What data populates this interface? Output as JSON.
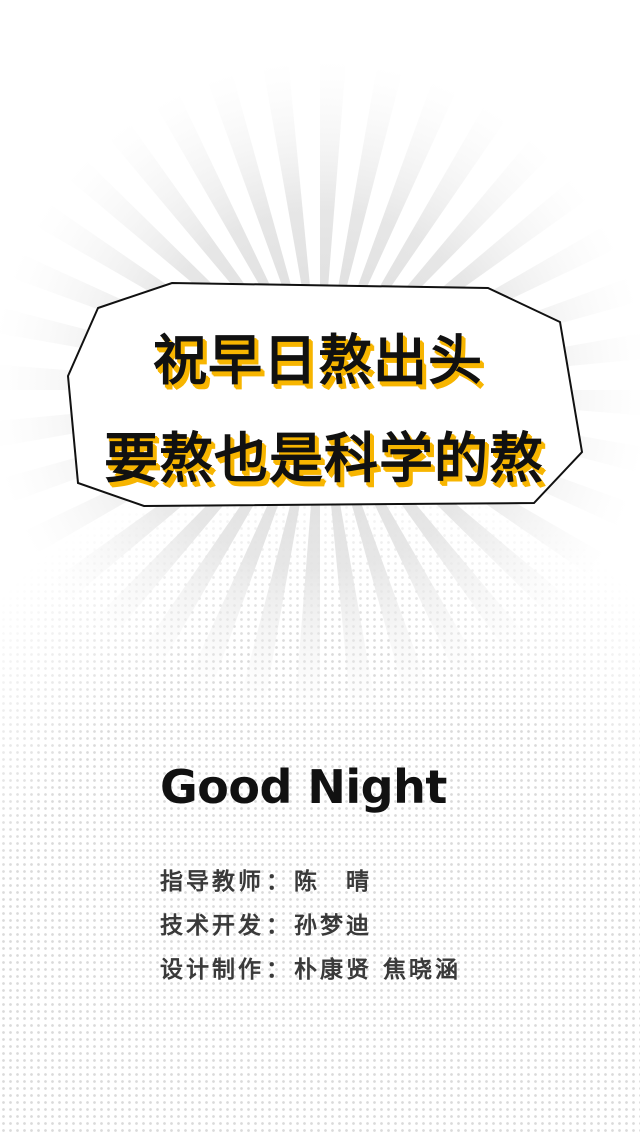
{
  "headline": {
    "line1": "祝早日熬出头",
    "line2": "要熬也是科学的熬"
  },
  "sign_off": "Good Night",
  "credits": [
    {
      "role": "指导教师",
      "separator": "：",
      "names": "陈　晴"
    },
    {
      "role": "技术开发",
      "separator": "：",
      "names": "孙梦迪"
    },
    {
      "role": "设计制作",
      "separator": "：",
      "names": "朴康贤  焦晓涵"
    }
  ],
  "colors": {
    "background": "#ffffff",
    "text": "#111111",
    "accent_shadow": "#f7b500",
    "credit_text": "#3a3a3a",
    "burst_gray": "#e6e6e6"
  }
}
